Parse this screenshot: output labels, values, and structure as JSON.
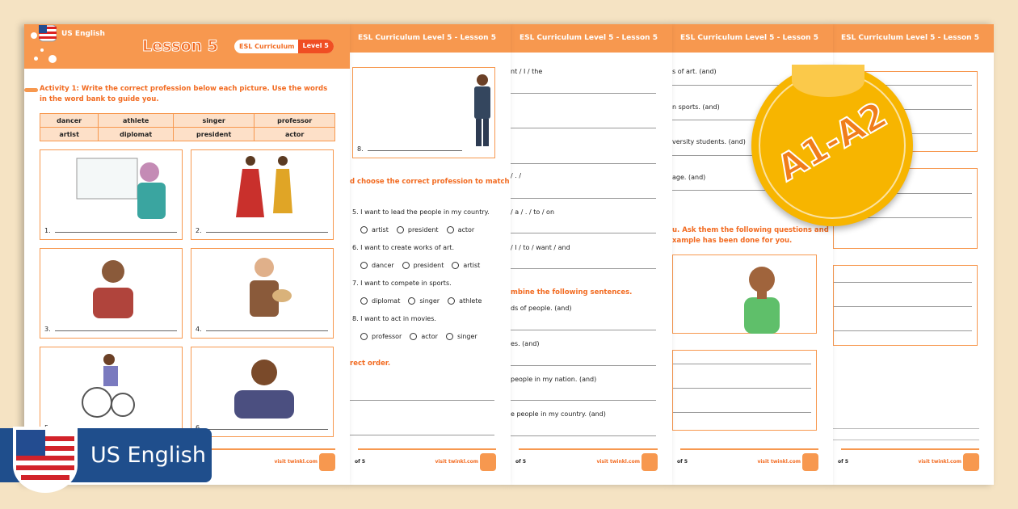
{
  "page1": {
    "lang": "US English",
    "title": "Lesson 5",
    "badge_left": "ESL Curriculum",
    "badge_right": "Level 5",
    "activity": "Activity 1: Write the correct profession below each picture. Use the words in the word bank to guide you.",
    "word_bank": [
      [
        "dancer",
        "athlete",
        "singer",
        "professor"
      ],
      [
        "artist",
        "diplomat",
        "president",
        "actor"
      ]
    ],
    "pictures": [
      "1.",
      "2.",
      "3.",
      "4.",
      "5.",
      "6."
    ],
    "footer": "visit twinkl.com"
  },
  "header_title": "ESL Curriculum Level 5 - Lesson 5",
  "page2": {
    "pic": "8.",
    "heading": "d choose the correct profession to match",
    "questions": [
      {
        "q": "5.  I want to lead the people in my country.",
        "opts": [
          "artist",
          "president",
          "actor"
        ]
      },
      {
        "q": "6.  I want to create works of art.",
        "opts": [
          "dancer",
          "president",
          "artist"
        ]
      },
      {
        "q": "7.  I want to compete in sports.",
        "opts": [
          "diplomat",
          "singer",
          "athlete"
        ]
      },
      {
        "q": "8.  I want to act in movies.",
        "opts": [
          "professor",
          "actor",
          "singer"
        ]
      }
    ],
    "heading2": "rect order.",
    "page": "of 5",
    "footer": "visit twinkl.com"
  },
  "page3": {
    "items": [
      "nt / I / the",
      "/ . /",
      "/ a / . / to / on",
      "/ I / to / want / and"
    ],
    "heading": "mbine the following sentences.",
    "sentences": [
      "ds of people. (and)",
      "es. (and)",
      "people in my nation. (and)",
      "e people in my country. (and)"
    ],
    "page": "of 5",
    "footer": "visit twinkl.com"
  },
  "page4": {
    "sentences": [
      "s of art. (and)",
      "n sports. (and)",
      "versity students. (and)",
      "age. (and)"
    ],
    "heading": "u. Ask them the following questions and",
    "heading2": "xample has been done for you.",
    "page": "of 5",
    "footer": "visit twinkl.com"
  },
  "page5": {
    "page": "of 5",
    "footer": "visit twinkl.com"
  },
  "sticker": {
    "text": "A1-A2",
    "color": "#f7b500"
  },
  "banner": {
    "text": "US English",
    "color": "#1f4e8c"
  }
}
